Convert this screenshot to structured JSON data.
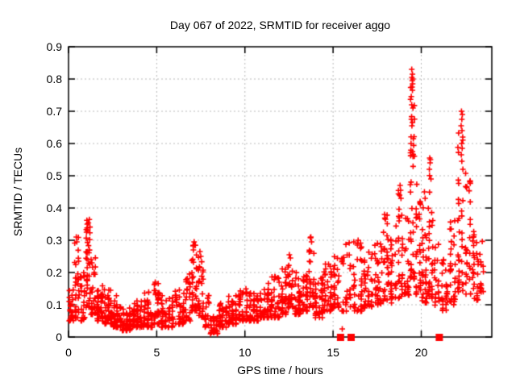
{
  "chart_data": {
    "type": "scatter",
    "title": "Day 067 of 2022, SRMTID for receiver aggo",
    "xlabel": "GPS time / hours",
    "ylabel": "SRMTID / TECUs",
    "xlim": [
      0,
      24
    ],
    "ylim": [
      0,
      0.9
    ],
    "xticks": [
      {
        "v": 0,
        "label": "0"
      },
      {
        "v": 5,
        "label": "5"
      },
      {
        "v": 10,
        "label": "10"
      },
      {
        "v": 15,
        "label": "15"
      },
      {
        "v": 20,
        "label": "20"
      }
    ],
    "yticks": [
      {
        "v": 0,
        "label": "0"
      },
      {
        "v": 0.1,
        "label": "0.1"
      },
      {
        "v": 0.2,
        "label": "0.2"
      },
      {
        "v": 0.3,
        "label": "0.3"
      },
      {
        "v": 0.4,
        "label": "0.4"
      },
      {
        "v": 0.5,
        "label": "0.5"
      },
      {
        "v": 0.6,
        "label": "0.6"
      },
      {
        "v": 0.7,
        "label": "0.7"
      },
      {
        "v": 0.8,
        "label": "0.8"
      },
      {
        "v": 0.9,
        "label": "0.9"
      }
    ],
    "grid": true,
    "legend_position": "none",
    "colors": {
      "points": "#ff0000",
      "grid": "#b8b8b8",
      "axis": "#000000",
      "background": "#ffffff"
    },
    "seed": 20220671,
    "series": [
      {
        "name": "srmtid",
        "marker": "plus",
        "color": "#ff0000",
        "bands": [
          [
            0.0,
            0.3,
            0.05,
            0.15,
            25,
            2.0
          ],
          [
            0.3,
            0.65,
            0.06,
            0.31,
            30,
            2.2
          ],
          [
            0.65,
            0.95,
            0.05,
            0.2,
            25,
            2.2
          ],
          [
            0.95,
            1.25,
            0.09,
            0.37,
            35,
            1.5
          ],
          [
            1.25,
            1.55,
            0.07,
            0.25,
            30,
            2.0
          ],
          [
            1.55,
            2.0,
            0.05,
            0.17,
            40,
            2.2
          ],
          [
            2.0,
            2.5,
            0.04,
            0.16,
            45,
            2.3
          ],
          [
            2.5,
            3.0,
            0.03,
            0.13,
            45,
            2.2
          ],
          [
            3.0,
            3.6,
            0.02,
            0.1,
            50,
            2.0
          ],
          [
            3.6,
            4.2,
            0.03,
            0.12,
            50,
            2.2
          ],
          [
            4.2,
            4.8,
            0.03,
            0.14,
            45,
            2.3
          ],
          [
            4.8,
            5.2,
            0.04,
            0.19,
            35,
            2.2
          ],
          [
            5.2,
            6.0,
            0.03,
            0.13,
            55,
            2.2
          ],
          [
            6.0,
            6.6,
            0.04,
            0.15,
            45,
            2.3
          ],
          [
            6.6,
            6.95,
            0.05,
            0.2,
            25,
            2.0
          ],
          [
            6.95,
            7.3,
            0.08,
            0.29,
            35,
            1.6
          ],
          [
            7.3,
            7.7,
            0.06,
            0.27,
            30,
            1.8
          ],
          [
            7.7,
            8.0,
            0.03,
            0.13,
            20,
            2.0
          ],
          [
            8.0,
            8.5,
            0.01,
            0.07,
            32,
            1.8
          ],
          [
            8.5,
            9.0,
            0.03,
            0.11,
            38,
            2.0
          ],
          [
            9.0,
            9.6,
            0.04,
            0.13,
            45,
            2.2
          ],
          [
            9.6,
            10.2,
            0.05,
            0.15,
            45,
            2.2
          ],
          [
            10.2,
            10.8,
            0.05,
            0.16,
            45,
            2.2
          ],
          [
            10.8,
            11.4,
            0.06,
            0.17,
            45,
            2.2
          ],
          [
            11.4,
            12.0,
            0.06,
            0.19,
            45,
            2.2
          ],
          [
            12.0,
            12.4,
            0.07,
            0.22,
            32,
            2.0
          ],
          [
            12.4,
            12.75,
            0.09,
            0.25,
            28,
            1.8
          ],
          [
            12.75,
            13.2,
            0.07,
            0.2,
            35,
            2.1
          ],
          [
            13.2,
            13.6,
            0.08,
            0.22,
            30,
            2.0
          ],
          [
            13.6,
            13.95,
            0.09,
            0.31,
            26,
            1.7
          ],
          [
            13.95,
            14.45,
            0.06,
            0.2,
            38,
            2.1
          ],
          [
            14.45,
            14.95,
            0.08,
            0.23,
            36,
            2.0
          ],
          [
            14.95,
            15.4,
            0.09,
            0.25,
            30,
            1.9
          ],
          [
            15.45,
            16.05,
            0.08,
            0.3,
            30,
            1.8
          ],
          [
            16.1,
            16.7,
            0.08,
            0.3,
            36,
            1.9
          ],
          [
            16.7,
            17.3,
            0.09,
            0.27,
            36,
            1.9
          ],
          [
            17.3,
            17.8,
            0.1,
            0.3,
            36,
            1.8
          ],
          [
            17.8,
            18.2,
            0.11,
            0.38,
            30,
            1.7
          ],
          [
            18.2,
            18.65,
            0.1,
            0.35,
            30,
            1.8
          ],
          [
            18.65,
            19.0,
            0.12,
            0.47,
            28,
            1.7
          ],
          [
            19.0,
            19.35,
            0.13,
            0.38,
            26,
            1.8
          ],
          [
            19.35,
            19.65,
            0.18,
            0.8,
            38,
            1.6
          ],
          [
            19.65,
            20.0,
            0.13,
            0.5,
            30,
            1.8
          ],
          [
            20.0,
            20.35,
            0.1,
            0.45,
            30,
            1.8
          ],
          [
            20.35,
            20.7,
            0.12,
            0.52,
            30,
            1.7
          ],
          [
            20.7,
            21.05,
            0.09,
            0.3,
            20,
            1.9
          ],
          [
            21.1,
            21.55,
            0.08,
            0.3,
            26,
            1.9
          ],
          [
            21.55,
            22.0,
            0.1,
            0.38,
            30,
            1.8
          ],
          [
            22.0,
            22.45,
            0.14,
            0.65,
            34,
            1.6
          ],
          [
            22.45,
            22.85,
            0.13,
            0.52,
            30,
            1.7
          ],
          [
            22.85,
            23.3,
            0.11,
            0.33,
            30,
            1.9
          ],
          [
            23.3,
            23.55,
            0.14,
            0.3,
            14,
            1.8
          ]
        ],
        "highlight_points": [
          [
            19.46,
            0.83
          ],
          [
            19.5,
            0.815
          ],
          [
            19.47,
            0.805
          ],
          [
            19.52,
            0.8
          ],
          [
            19.49,
            0.795
          ],
          [
            19.51,
            0.785
          ],
          [
            19.48,
            0.775
          ],
          [
            19.5,
            0.765
          ],
          [
            19.46,
            0.72
          ],
          [
            19.53,
            0.71
          ],
          [
            19.44,
            0.675
          ],
          [
            19.5,
            0.665
          ],
          [
            19.47,
            0.655
          ],
          [
            19.55,
            0.615
          ],
          [
            19.42,
            0.6
          ],
          [
            19.5,
            0.575
          ],
          [
            19.53,
            0.56
          ],
          [
            22.28,
            0.7
          ],
          [
            22.33,
            0.69
          ],
          [
            22.3,
            0.675
          ],
          [
            22.26,
            0.655
          ],
          [
            22.31,
            0.64
          ],
          [
            22.35,
            0.62
          ],
          [
            22.29,
            0.6
          ],
          [
            22.32,
            0.585
          ],
          [
            22.27,
            0.565
          ],
          [
            22.3,
            0.545
          ],
          [
            22.36,
            0.52
          ],
          [
            20.48,
            0.555
          ],
          [
            20.52,
            0.55
          ],
          [
            20.5,
            0.54
          ],
          [
            20.46,
            0.52
          ],
          [
            20.55,
            0.49
          ],
          [
            18.8,
            0.47
          ],
          [
            18.83,
            0.455
          ],
          [
            18.77,
            0.44
          ],
          [
            18.85,
            0.43
          ],
          [
            17.92,
            0.38
          ],
          [
            17.97,
            0.365
          ],
          [
            20.18,
            0.45
          ],
          [
            20.22,
            0.43
          ],
          [
            1.04,
            0.362
          ],
          [
            1.06,
            0.35
          ],
          [
            1.05,
            0.338
          ],
          [
            1.08,
            0.33
          ],
          [
            1.02,
            0.325
          ],
          [
            0.44,
            0.31
          ],
          [
            0.47,
            0.295
          ],
          [
            7.12,
            0.295
          ],
          [
            7.16,
            0.285
          ],
          [
            7.08,
            0.27
          ],
          [
            7.45,
            0.265
          ],
          [
            7.5,
            0.25
          ],
          [
            13.74,
            0.31
          ],
          [
            13.78,
            0.295
          ],
          [
            12.52,
            0.255
          ],
          [
            12.58,
            0.245
          ],
          [
            16.42,
            0.3
          ],
          [
            16.38,
            0.285
          ],
          [
            15.52,
            0.025
          ]
        ]
      },
      {
        "name": "baseline-gap-markers",
        "marker": "filled-square",
        "color": "#ff0000",
        "points": [
          [
            15.4,
            0
          ],
          [
            16.0,
            0
          ],
          [
            21.0,
            0
          ]
        ]
      }
    ]
  }
}
